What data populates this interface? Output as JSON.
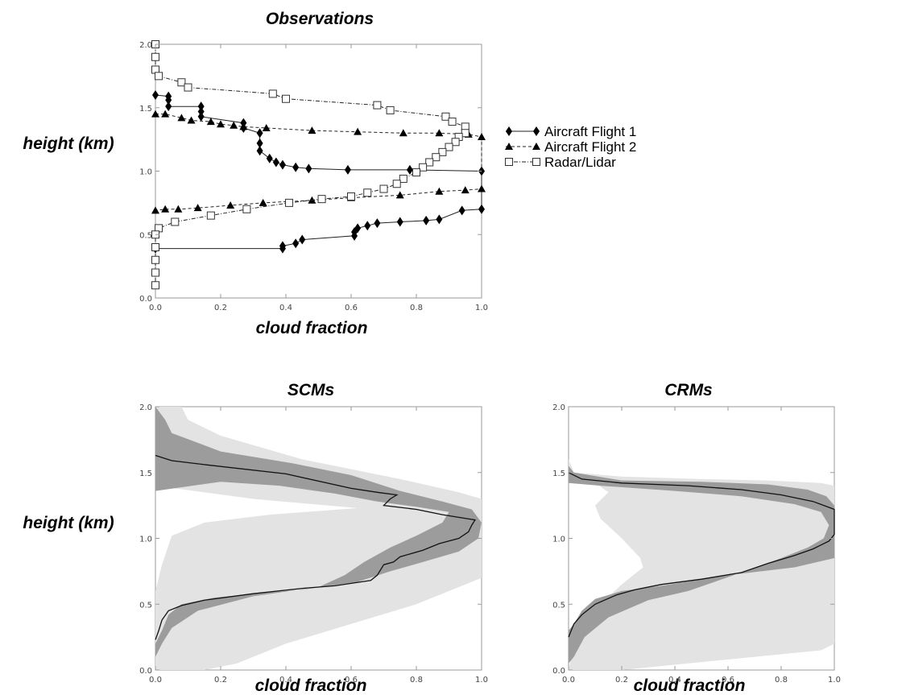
{
  "colors": {
    "background": "#ffffff",
    "axes_frame": "#9a9a9a",
    "outer_band": "#e3e3e3",
    "inner_band": "#9c9c9c",
    "mean_line": "#111111",
    "markers": "#000000"
  },
  "chart_data": [
    {
      "id": "observations",
      "type": "line",
      "title": "Observations",
      "xlabel": "cloud fraction",
      "ylabel": "height (km)",
      "xlim": [
        0,
        1
      ],
      "ylim": [
        0,
        2
      ],
      "x_ticks": [
        "0.0",
        "0.2",
        "0.4",
        "0.6",
        "0.8",
        "1.0"
      ],
      "y_ticks": [
        "0.0",
        "0.5",
        "1.0",
        "1.5",
        "2.0"
      ],
      "legend_position": "right",
      "series": [
        {
          "name": "Aircraft Flight 1",
          "marker": "diamond",
          "line_style": "solid",
          "points": [
            [
              0.0,
              1.6
            ],
            [
              0.04,
              1.59
            ],
            [
              0.04,
              1.56
            ],
            [
              0.04,
              1.51
            ],
            [
              0.14,
              1.51
            ],
            [
              0.14,
              1.47
            ],
            [
              0.14,
              1.43
            ],
            [
              0.27,
              1.38
            ],
            [
              0.27,
              1.34
            ],
            [
              0.32,
              1.3
            ],
            [
              0.32,
              1.22
            ],
            [
              0.32,
              1.16
            ],
            [
              0.35,
              1.1
            ],
            [
              0.37,
              1.07
            ],
            [
              0.39,
              1.05
            ],
            [
              0.43,
              1.03
            ],
            [
              0.47,
              1.02
            ],
            [
              0.59,
              1.01
            ],
            [
              0.78,
              1.01
            ],
            [
              1.0,
              1.0
            ],
            [
              1.0,
              0.7
            ],
            [
              0.94,
              0.69
            ],
            [
              0.87,
              0.62
            ],
            [
              0.83,
              0.61
            ],
            [
              0.75,
              0.6
            ],
            [
              0.68,
              0.59
            ],
            [
              0.65,
              0.57
            ],
            [
              0.62,
              0.55
            ],
            [
              0.61,
              0.52
            ],
            [
              0.61,
              0.49
            ],
            [
              0.45,
              0.46
            ],
            [
              0.43,
              0.43
            ],
            [
              0.39,
              0.41
            ],
            [
              0.39,
              0.39
            ],
            [
              0.0,
              0.39
            ]
          ]
        },
        {
          "name": "Aircraft Flight 2",
          "marker": "triangle",
          "line_style": "dashed",
          "points": [
            [
              0.0,
              1.45
            ],
            [
              0.03,
              1.45
            ],
            [
              0.08,
              1.42
            ],
            [
              0.11,
              1.4
            ],
            [
              0.17,
              1.39
            ],
            [
              0.2,
              1.37
            ],
            [
              0.24,
              1.36
            ],
            [
              0.27,
              1.35
            ],
            [
              0.34,
              1.34
            ],
            [
              0.48,
              1.32
            ],
            [
              0.62,
              1.31
            ],
            [
              0.76,
              1.3
            ],
            [
              0.87,
              1.3
            ],
            [
              0.96,
              1.29
            ],
            [
              1.0,
              1.27
            ],
            [
              1.0,
              0.86
            ],
            [
              0.95,
              0.85
            ],
            [
              0.87,
              0.84
            ],
            [
              0.75,
              0.81
            ],
            [
              0.6,
              0.79
            ],
            [
              0.48,
              0.77
            ],
            [
              0.33,
              0.75
            ],
            [
              0.23,
              0.73
            ],
            [
              0.13,
              0.71
            ],
            [
              0.07,
              0.7
            ],
            [
              0.03,
              0.7
            ],
            [
              0.0,
              0.69
            ]
          ]
        },
        {
          "name": "Radar/Lidar",
          "marker": "square",
          "line_style": "dash-dot",
          "points": [
            [
              0.0,
              2.0
            ],
            [
              0.0,
              1.9
            ],
            [
              0.0,
              1.8
            ],
            [
              0.01,
              1.75
            ],
            [
              0.08,
              1.7
            ],
            [
              0.1,
              1.66
            ],
            [
              0.36,
              1.61
            ],
            [
              0.4,
              1.57
            ],
            [
              0.68,
              1.52
            ],
            [
              0.72,
              1.48
            ],
            [
              0.89,
              1.43
            ],
            [
              0.91,
              1.39
            ],
            [
              0.95,
              1.35
            ],
            [
              0.95,
              1.3
            ],
            [
              0.93,
              1.27
            ],
            [
              0.92,
              1.23
            ],
            [
              0.9,
              1.19
            ],
            [
              0.88,
              1.15
            ],
            [
              0.86,
              1.11
            ],
            [
              0.84,
              1.07
            ],
            [
              0.82,
              1.03
            ],
            [
              0.8,
              0.99
            ],
            [
              0.76,
              0.94
            ],
            [
              0.74,
              0.9
            ],
            [
              0.7,
              0.86
            ],
            [
              0.65,
              0.83
            ],
            [
              0.6,
              0.8
            ],
            [
              0.51,
              0.78
            ],
            [
              0.41,
              0.75
            ],
            [
              0.28,
              0.7
            ],
            [
              0.17,
              0.65
            ],
            [
              0.06,
              0.6
            ],
            [
              0.01,
              0.55
            ],
            [
              0.0,
              0.5
            ],
            [
              0.0,
              0.4
            ],
            [
              0.0,
              0.3
            ],
            [
              0.0,
              0.2
            ],
            [
              0.0,
              0.1
            ]
          ]
        }
      ]
    },
    {
      "id": "scms",
      "type": "area",
      "title": "SCMs",
      "xlabel": "cloud fraction",
      "ylabel": "height (km)",
      "xlim": [
        0,
        1
      ],
      "ylim": [
        0,
        2
      ],
      "x_ticks": [
        "0.0",
        "0.2",
        "0.4",
        "0.6",
        "0.8",
        "1.0"
      ],
      "y_ticks": [
        "0.0",
        "0.5",
        "1.0",
        "1.5",
        "2.0"
      ],
      "outer_band": {
        "upper": [
          [
            0.08,
            2.0
          ],
          [
            0.1,
            1.9
          ],
          [
            0.2,
            1.78
          ],
          [
            0.45,
            1.6
          ],
          [
            0.75,
            1.45
          ],
          [
            0.93,
            1.35
          ],
          [
            1.0,
            1.3
          ],
          [
            1.0,
            1.0
          ],
          [
            1.0,
            0.7
          ],
          [
            0.95,
            0.65
          ],
          [
            0.9,
            0.6
          ],
          [
            0.8,
            0.5
          ],
          [
            0.6,
            0.35
          ],
          [
            0.4,
            0.2
          ],
          [
            0.25,
            0.05
          ],
          [
            0.15,
            0.0
          ]
        ],
        "lower": [
          [
            0.0,
            2.0
          ],
          [
            0.0,
            1.6
          ],
          [
            0.0,
            1.4
          ],
          [
            0.3,
            1.3
          ],
          [
            0.62,
            1.23
          ],
          [
            0.35,
            1.18
          ],
          [
            0.15,
            1.12
          ],
          [
            0.05,
            1.02
          ],
          [
            0.02,
            0.8
          ],
          [
            0.0,
            0.6
          ],
          [
            0.0,
            0.0
          ]
        ]
      },
      "inner_band": {
        "upper": [
          [
            0.0,
            2.0
          ],
          [
            0.03,
            1.9
          ],
          [
            0.05,
            1.8
          ],
          [
            0.2,
            1.66
          ],
          [
            0.42,
            1.57
          ],
          [
            0.6,
            1.48
          ],
          [
            0.75,
            1.36
          ],
          [
            0.88,
            1.28
          ],
          [
            0.97,
            1.22
          ],
          [
            1.0,
            1.12
          ],
          [
            0.99,
            1.0
          ],
          [
            0.93,
            0.9
          ],
          [
            0.82,
            0.82
          ],
          [
            0.72,
            0.75
          ],
          [
            0.62,
            0.67
          ],
          [
            0.45,
            0.61
          ],
          [
            0.3,
            0.58
          ],
          [
            0.18,
            0.55
          ],
          [
            0.08,
            0.5
          ],
          [
            0.04,
            0.42
          ],
          [
            0.02,
            0.3
          ],
          [
            0.0,
            0.2
          ]
        ],
        "lower": [
          [
            0.0,
            1.36
          ],
          [
            0.2,
            1.43
          ],
          [
            0.38,
            1.4
          ],
          [
            0.55,
            1.34
          ],
          [
            0.68,
            1.28
          ],
          [
            0.8,
            1.24
          ],
          [
            0.9,
            1.2
          ],
          [
            0.88,
            1.12
          ],
          [
            0.8,
            1.02
          ],
          [
            0.72,
            0.93
          ],
          [
            0.64,
            0.82
          ],
          [
            0.58,
            0.72
          ],
          [
            0.5,
            0.63
          ],
          [
            0.3,
            0.56
          ],
          [
            0.13,
            0.45
          ],
          [
            0.05,
            0.32
          ],
          [
            0.02,
            0.2
          ],
          [
            0.0,
            0.1
          ]
        ]
      },
      "mean": [
        [
          0.0,
          1.63
        ],
        [
          0.05,
          1.59
        ],
        [
          0.15,
          1.56
        ],
        [
          0.4,
          1.49
        ],
        [
          0.6,
          1.38
        ],
        [
          0.68,
          1.35
        ],
        [
          0.74,
          1.33
        ],
        [
          0.72,
          1.3
        ],
        [
          0.7,
          1.25
        ],
        [
          0.8,
          1.22
        ],
        [
          0.88,
          1.18
        ],
        [
          0.98,
          1.14
        ],
        [
          0.97,
          1.1
        ],
        [
          0.96,
          1.05
        ],
        [
          0.93,
          1.0
        ],
        [
          0.87,
          0.96
        ],
        [
          0.82,
          0.91
        ],
        [
          0.75,
          0.86
        ],
        [
          0.73,
          0.82
        ],
        [
          0.7,
          0.8
        ],
        [
          0.68,
          0.72
        ],
        [
          0.66,
          0.68
        ],
        [
          0.55,
          0.64
        ],
        [
          0.45,
          0.62
        ],
        [
          0.3,
          0.58
        ],
        [
          0.15,
          0.53
        ],
        [
          0.08,
          0.49
        ],
        [
          0.04,
          0.45
        ],
        [
          0.02,
          0.38
        ],
        [
          0.01,
          0.3
        ],
        [
          0.0,
          0.23
        ]
      ]
    },
    {
      "id": "crms",
      "type": "area",
      "title": "CRMs",
      "xlabel": "cloud fraction",
      "ylabel": "",
      "xlim": [
        0,
        1
      ],
      "ylim": [
        0,
        2
      ],
      "x_ticks": [
        "0.0",
        "0.2",
        "0.4",
        "0.6",
        "0.8",
        "1.0"
      ],
      "y_ticks": [
        "0.0",
        "0.5",
        "1.0",
        "1.5",
        "2.0"
      ],
      "outer_band": {
        "upper": [
          [
            0.0,
            1.6
          ],
          [
            0.02,
            1.5
          ],
          [
            0.2,
            1.47
          ],
          [
            0.5,
            1.45
          ],
          [
            0.75,
            1.44
          ],
          [
            0.95,
            1.42
          ],
          [
            1.0,
            1.4
          ],
          [
            1.0,
            1.0
          ],
          [
            1.0,
            0.5
          ],
          [
            1.0,
            0.2
          ],
          [
            0.95,
            0.15
          ],
          [
            0.7,
            0.1
          ],
          [
            0.45,
            0.05
          ],
          [
            0.2,
            0.0
          ]
        ],
        "lower": [
          [
            0.0,
            1.48
          ],
          [
            0.1,
            1.42
          ],
          [
            0.15,
            1.35
          ],
          [
            0.1,
            1.25
          ],
          [
            0.12,
            1.15
          ],
          [
            0.2,
            1.0
          ],
          [
            0.27,
            0.85
          ],
          [
            0.28,
            0.78
          ],
          [
            0.2,
            0.65
          ],
          [
            0.12,
            0.5
          ],
          [
            0.06,
            0.35
          ],
          [
            0.02,
            0.2
          ],
          [
            0.0,
            0.0
          ]
        ]
      },
      "inner_band": {
        "upper": [
          [
            0.0,
            1.55
          ],
          [
            0.02,
            1.5
          ],
          [
            0.2,
            1.44
          ],
          [
            0.5,
            1.43
          ],
          [
            0.75,
            1.41
          ],
          [
            0.9,
            1.37
          ],
          [
            0.97,
            1.32
          ],
          [
            1.0,
            1.25
          ],
          [
            1.0,
            1.0
          ],
          [
            1.0,
            0.85
          ],
          [
            0.85,
            0.78
          ],
          [
            0.6,
            0.72
          ],
          [
            0.35,
            0.64
          ],
          [
            0.2,
            0.6
          ],
          [
            0.1,
            0.54
          ],
          [
            0.05,
            0.45
          ],
          [
            0.02,
            0.35
          ],
          [
            0.0,
            0.3
          ]
        ],
        "lower": [
          [
            0.0,
            1.42
          ],
          [
            0.12,
            1.4
          ],
          [
            0.4,
            1.36
          ],
          [
            0.65,
            1.32
          ],
          [
            0.85,
            1.26
          ],
          [
            0.95,
            1.2
          ],
          [
            0.98,
            1.1
          ],
          [
            0.96,
            1.0
          ],
          [
            0.9,
            0.93
          ],
          [
            0.8,
            0.85
          ],
          [
            0.65,
            0.74
          ],
          [
            0.45,
            0.6
          ],
          [
            0.3,
            0.53
          ],
          [
            0.15,
            0.4
          ],
          [
            0.06,
            0.25
          ],
          [
            0.02,
            0.1
          ],
          [
            0.0,
            0.05
          ]
        ]
      },
      "mean": [
        [
          0.0,
          1.5
        ],
        [
          0.05,
          1.45
        ],
        [
          0.2,
          1.42
        ],
        [
          0.45,
          1.4
        ],
        [
          0.65,
          1.37
        ],
        [
          0.8,
          1.33
        ],
        [
          0.92,
          1.28
        ],
        [
          1.0,
          1.22
        ],
        [
          1.0,
          1.1
        ],
        [
          1.0,
          1.03
        ],
        [
          0.98,
          0.98
        ],
        [
          0.92,
          0.92
        ],
        [
          0.85,
          0.87
        ],
        [
          0.75,
          0.81
        ],
        [
          0.65,
          0.74
        ],
        [
          0.5,
          0.69
        ],
        [
          0.35,
          0.65
        ],
        [
          0.25,
          0.61
        ],
        [
          0.18,
          0.57
        ],
        [
          0.1,
          0.5
        ],
        [
          0.05,
          0.42
        ],
        [
          0.02,
          0.35
        ],
        [
          0.01,
          0.3
        ],
        [
          0.0,
          0.25
        ]
      ]
    }
  ]
}
